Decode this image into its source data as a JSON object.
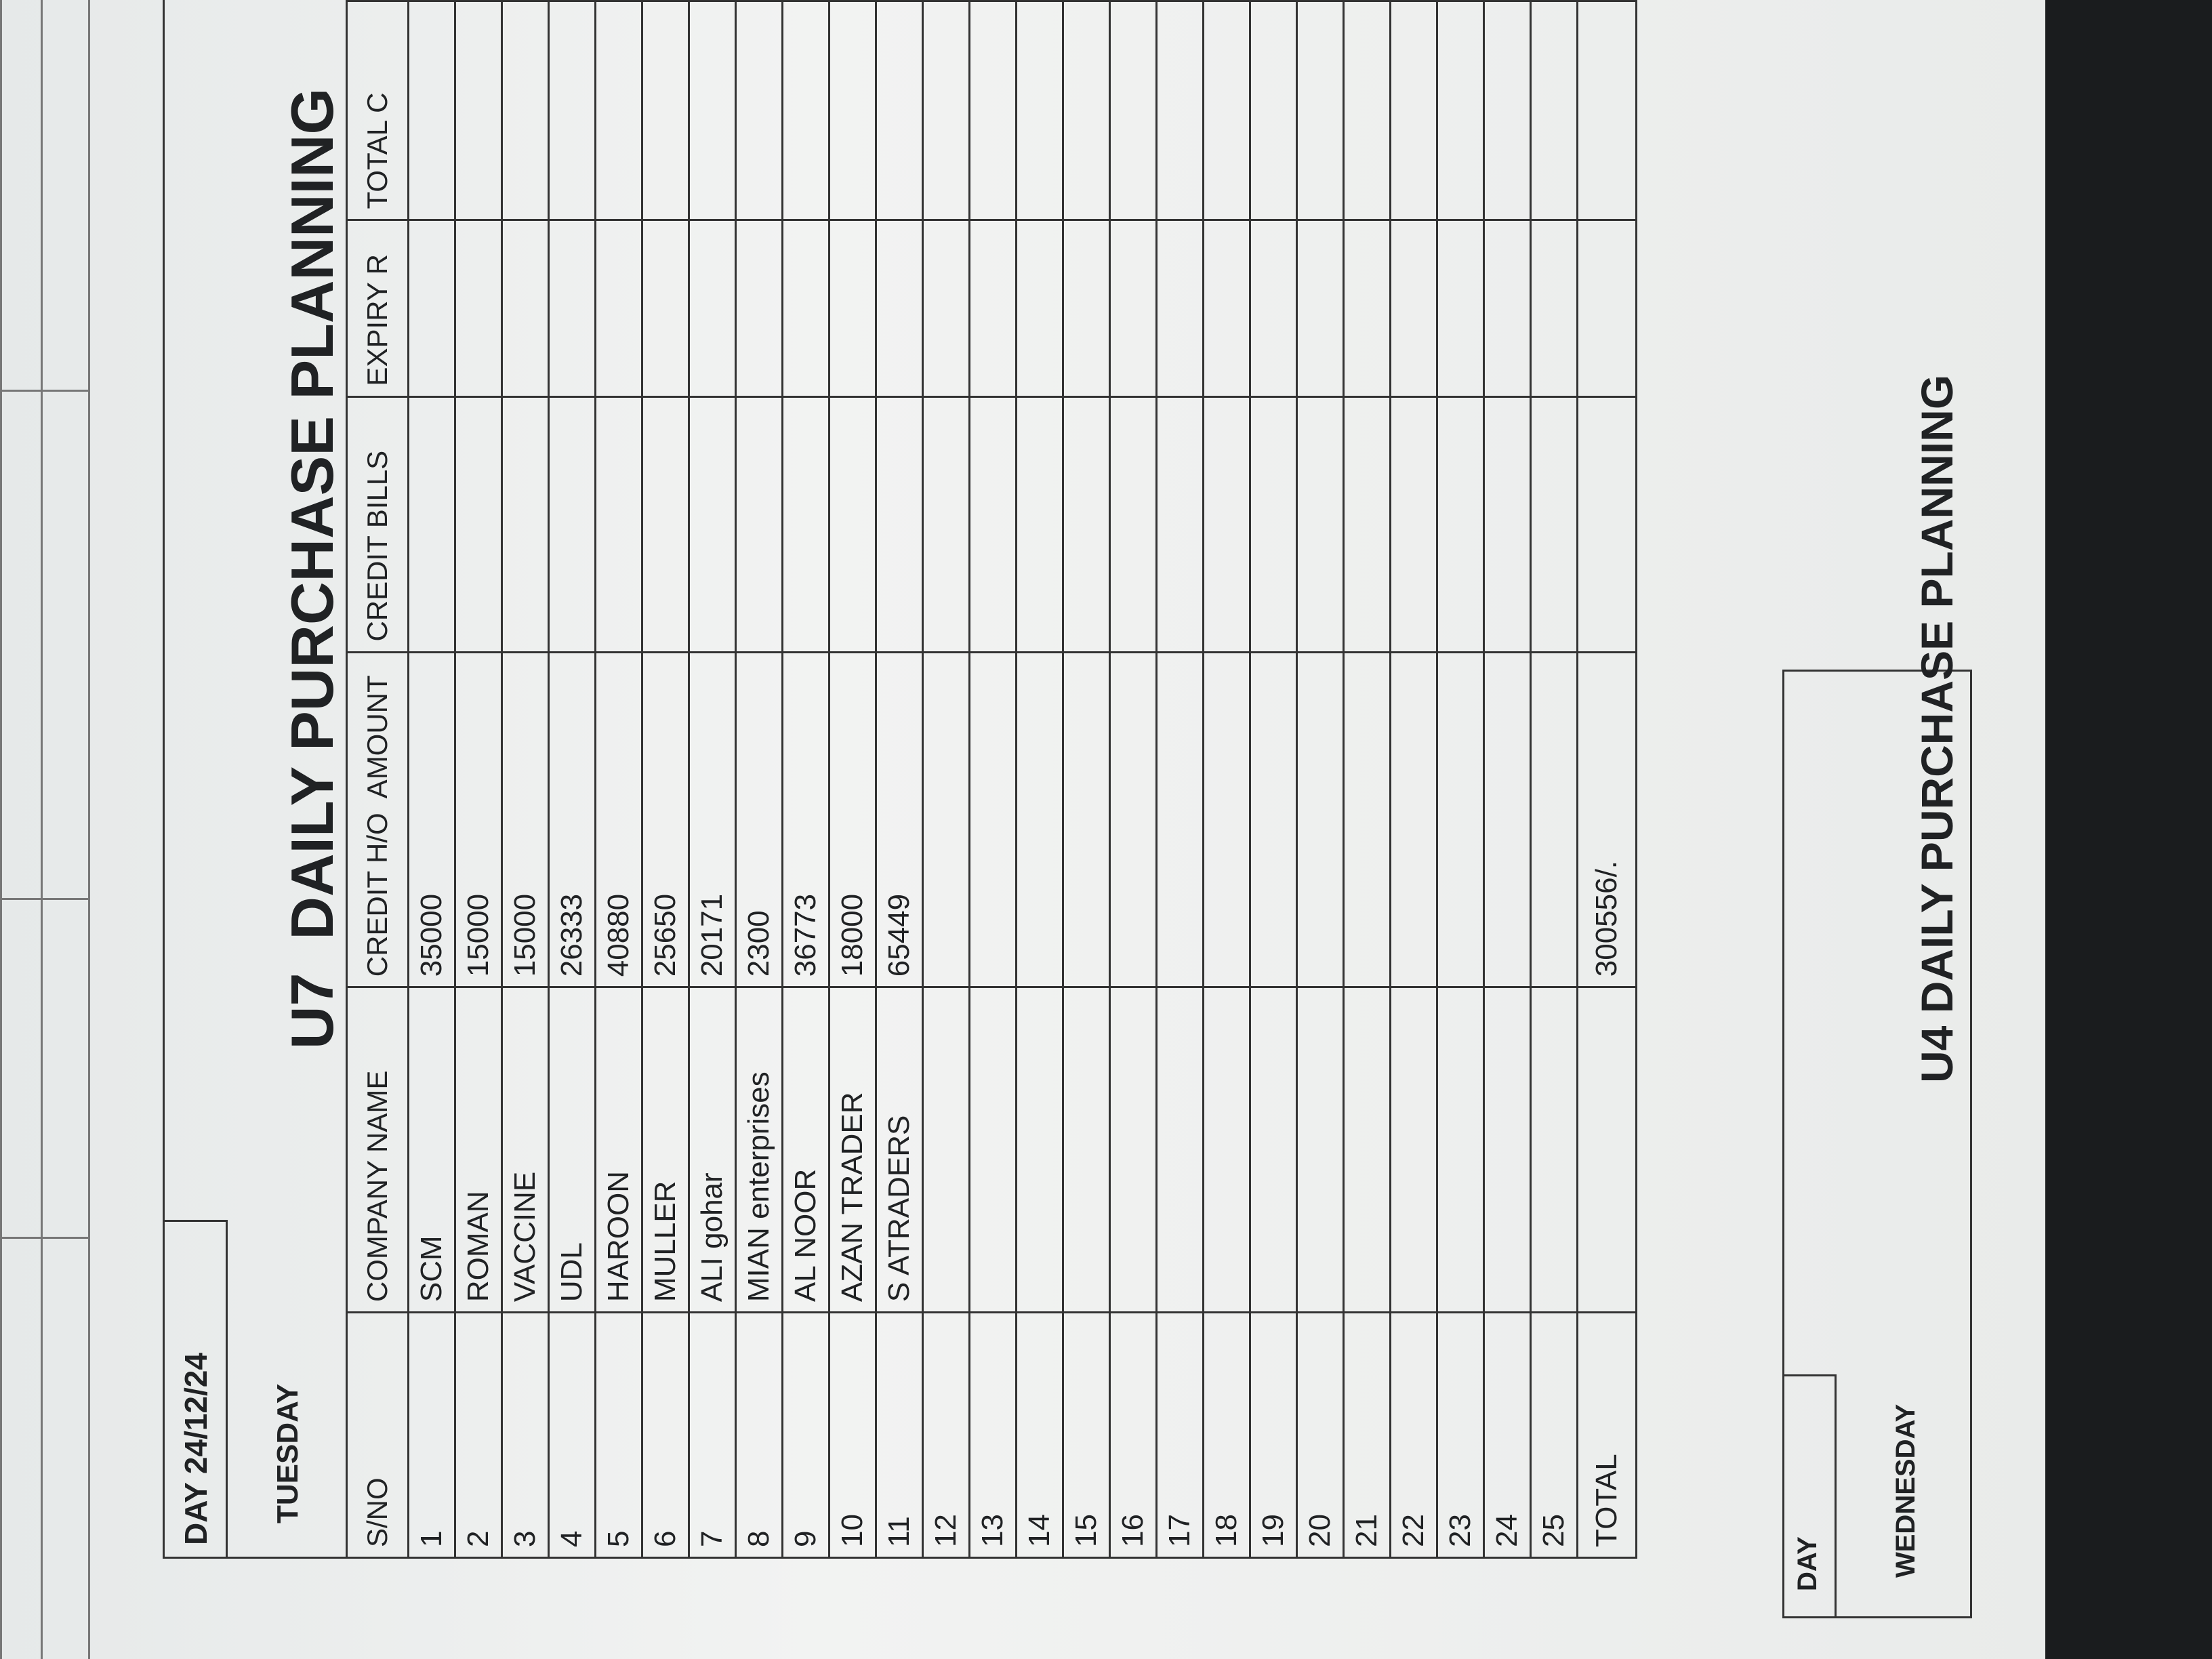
{
  "header": {
    "day": "DAY 24/12/24",
    "weekday": "TUESDAY",
    "title": "U7  DAILY PURCHASE PLANNING"
  },
  "table": {
    "columns": [
      "S/NO",
      "COMPANY NAME",
      "CREDIT H/O  AMOUNT",
      "CREDIT BILLS",
      "EXPIRY R",
      "TOTAL C"
    ],
    "rows": [
      {
        "sno": 1,
        "company": "SCM",
        "amount": 35000
      },
      {
        "sno": 2,
        "company": "ROMAN",
        "amount": 15000
      },
      {
        "sno": 3,
        "company": "VACCINE",
        "amount": 15000
      },
      {
        "sno": 4,
        "company": "UDL",
        "amount": 26333
      },
      {
        "sno": 5,
        "company": "HAROON",
        "amount": 40880
      },
      {
        "sno": 6,
        "company": "MULLER",
        "amount": 25650
      },
      {
        "sno": 7,
        "company": "ALI gohar",
        "amount": 20171
      },
      {
        "sno": 8,
        "company": "MIAN enterprises",
        "amount": 2300
      },
      {
        "sno": 9,
        "company": "AL NOOR",
        "amount": 36773
      },
      {
        "sno": 10,
        "company": "AZAN TRADER",
        "amount": 18000
      },
      {
        "sno": 11,
        "company": "S ATRADERS",
        "amount": 65449
      },
      {
        "sno": 12
      },
      {
        "sno": 13
      },
      {
        "sno": 14
      },
      {
        "sno": 15
      },
      {
        "sno": 16
      },
      {
        "sno": 17
      },
      {
        "sno": 18
      },
      {
        "sno": 19
      },
      {
        "sno": 20
      },
      {
        "sno": 21
      },
      {
        "sno": 22
      },
      {
        "sno": 23
      },
      {
        "sno": 24
      },
      {
        "sno": 25
      }
    ],
    "total": {
      "label": "TOTAL",
      "amount": "300556/."
    }
  },
  "next_section": {
    "day": "DAY",
    "weekday": "WEDNESDAY",
    "title": "U4 DAILY PURCHASE PLANNING"
  }
}
